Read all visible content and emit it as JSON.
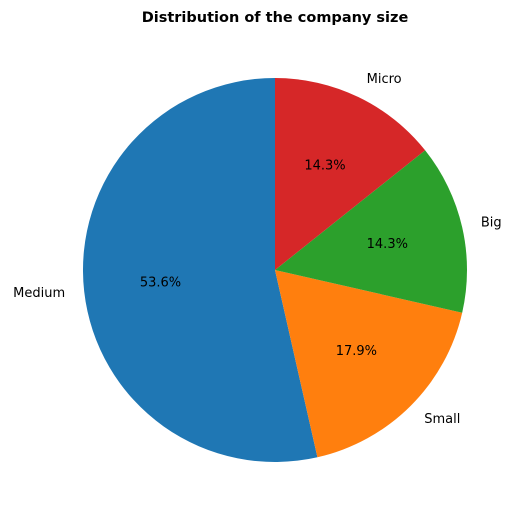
{
  "chart_data": {
    "type": "pie",
    "title": "Distribution of the company size",
    "categories": [
      "Medium",
      "Small",
      "Big",
      "Micro"
    ],
    "values": [
      53.6,
      17.9,
      14.3,
      14.3
    ],
    "percent_labels": [
      "53.6%",
      "17.9%",
      "14.3%",
      "14.3%"
    ],
    "colors": [
      "#1f77b4",
      "#ff7f0e",
      "#2ca02c",
      "#d62728"
    ],
    "start_angle_deg": 90,
    "direction": "counterclockwise",
    "legend": "none"
  }
}
